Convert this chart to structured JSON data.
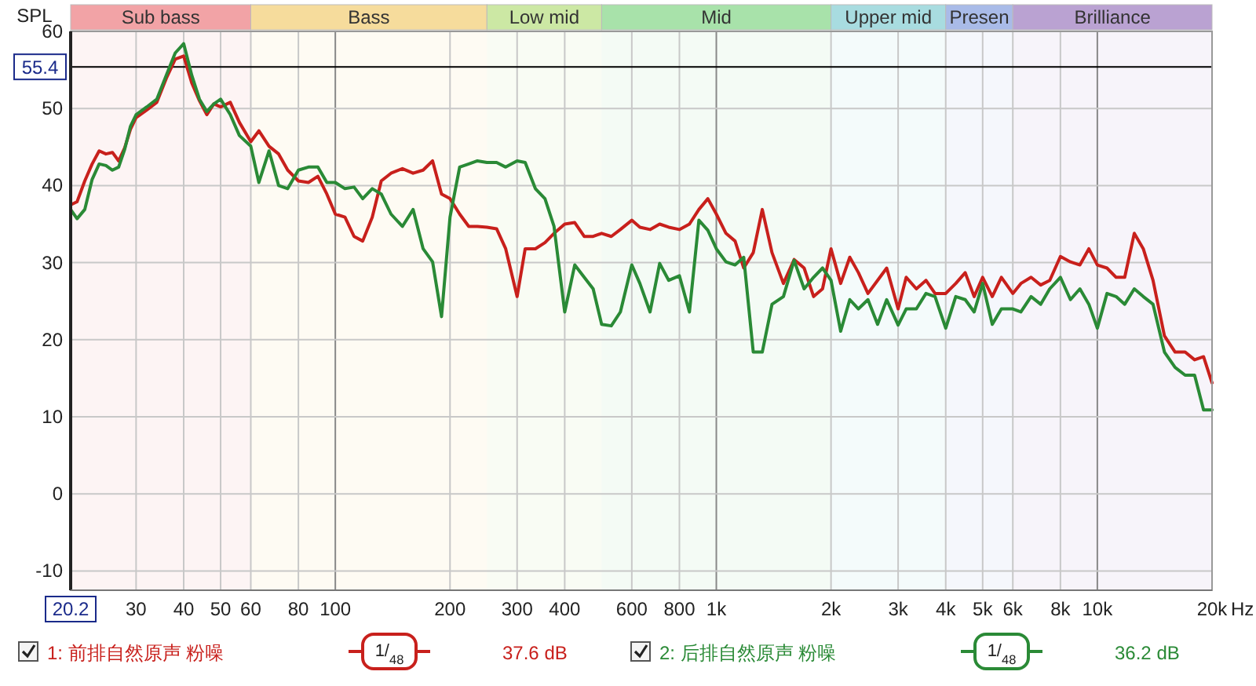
{
  "chart_data": {
    "type": "line",
    "ylabel": "SPL",
    "log": "x",
    "grid": true,
    "legend": "bottom",
    "marker": "none",
    "line_style": "solid",
    "xlim": [
      20.2,
      20000
    ],
    "ylim": [
      -12.5,
      60
    ],
    "xticks": [
      {
        "value": 20.2,
        "label": "20.2"
      },
      30,
      40,
      50,
      60,
      80,
      100,
      200,
      300,
      400,
      600,
      800,
      {
        "value": 1000,
        "label": "1k"
      },
      {
        "value": 2000,
        "label": "2k"
      },
      {
        "value": 3000,
        "label": "3k"
      },
      {
        "value": 4000,
        "label": "4k"
      },
      {
        "value": 5000,
        "label": "5k"
      },
      {
        "value": 6000,
        "label": "6k"
      },
      {
        "value": 8000,
        "label": "8k"
      },
      {
        "value": 10000,
        "label": "10k"
      },
      {
        "value": 20000,
        "label": "20k"
      }
    ],
    "xlabel": "Hz",
    "yticks": [
      -10,
      0,
      10,
      20,
      30,
      40,
      50,
      60
    ],
    "x": [
      20.2,
      21,
      22,
      23,
      24,
      25,
      26,
      27,
      28,
      29,
      30,
      32,
      34,
      36,
      38,
      40,
      42,
      44,
      46,
      48,
      50,
      53,
      56,
      60,
      63,
      67,
      71,
      75,
      80,
      85,
      90,
      95,
      100,
      106,
      112,
      118,
      125,
      132,
      140,
      150,
      160,
      170,
      180,
      190,
      200,
      212,
      224,
      236,
      250,
      265,
      280,
      300,
      315,
      335,
      355,
      375,
      400,
      425,
      450,
      475,
      500,
      530,
      560,
      600,
      630,
      670,
      710,
      750,
      800,
      850,
      900,
      950,
      1000,
      1060,
      1120,
      1180,
      1250,
      1320,
      1400,
      1500,
      1600,
      1700,
      1800,
      1900,
      2000,
      2120,
      2240,
      2360,
      2500,
      2650,
      2800,
      3000,
      3150,
      3350,
      3550,
      3750,
      4000,
      4250,
      4500,
      4750,
      5000,
      5300,
      5600,
      6000,
      6300,
      6700,
      7100,
      7500,
      8000,
      8500,
      9000,
      9500,
      10000,
      10600,
      11200,
      11800,
      12500,
      13200,
      14000,
      15000,
      16000,
      17000,
      18000,
      19000,
      20000
    ],
    "series": [
      {
        "name": "1: 前排自然原声 粉噪",
        "color": "#c8201c",
        "values": [
          37.5,
          37.9,
          40.6,
          42.8,
          44.5,
          44.1,
          44.3,
          43.2,
          44.9,
          47.3,
          48.8,
          49.8,
          50.8,
          53.9,
          56.4,
          56.8,
          53.3,
          51.0,
          49.2,
          50.6,
          50.2,
          50.8,
          48.2,
          45.7,
          47.1,
          45.1,
          44.1,
          42.0,
          40.6,
          40.4,
          41.2,
          38.9,
          36.3,
          35.9,
          33.4,
          32.8,
          35.9,
          40.6,
          41.6,
          42.2,
          41.6,
          42.0,
          43.2,
          38.9,
          38.3,
          36.3,
          34.7,
          34.7,
          34.6,
          34.4,
          31.8,
          25.6,
          31.8,
          31.8,
          32.6,
          33.8,
          35.0,
          35.2,
          33.4,
          33.4,
          33.8,
          33.4,
          34.3,
          35.5,
          34.6,
          34.3,
          35.0,
          34.6,
          34.3,
          35.0,
          36.9,
          38.3,
          36.3,
          33.8,
          32.8,
          29.3,
          31.3,
          36.9,
          31.3,
          27.3,
          30.4,
          29.3,
          25.6,
          26.6,
          31.8,
          27.3,
          30.7,
          28.7,
          26.0,
          27.7,
          29.3,
          24.0,
          28.1,
          26.6,
          27.7,
          26.0,
          26.0,
          27.3,
          28.7,
          25.6,
          28.1,
          25.6,
          28.1,
          26.0,
          27.3,
          28.1,
          27.1,
          27.7,
          30.8,
          30.1,
          29.7,
          31.8,
          29.7,
          29.3,
          28.1,
          28.1,
          33.8,
          31.8,
          27.7,
          20.5,
          18.4,
          18.4,
          17.4,
          17.8,
          14.4
        ]
      },
      {
        "name": "2: 后排自然原声 粉噪",
        "color": "#2a8a36",
        "values": [
          36.9,
          35.7,
          36.9,
          40.8,
          42.8,
          42.6,
          42.0,
          42.4,
          44.7,
          47.7,
          49.2,
          50.2,
          51.2,
          54.3,
          57.2,
          58.4,
          54.3,
          51.2,
          49.6,
          50.6,
          51.2,
          49.2,
          46.5,
          45.1,
          40.4,
          44.5,
          40.0,
          39.6,
          42.0,
          42.4,
          42.4,
          40.4,
          40.4,
          39.6,
          39.8,
          38.3,
          39.6,
          38.9,
          36.3,
          34.7,
          36.9,
          31.8,
          30.1,
          23.0,
          35.9,
          42.4,
          42.8,
          43.2,
          43.0,
          43.0,
          42.4,
          43.2,
          43.0,
          39.6,
          38.3,
          34.7,
          23.6,
          29.7,
          28.1,
          26.6,
          22.0,
          21.8,
          23.6,
          29.7,
          27.3,
          23.6,
          29.9,
          27.7,
          28.3,
          23.6,
          35.5,
          34.2,
          31.8,
          30.1,
          29.7,
          30.7,
          18.4,
          18.4,
          24.6,
          25.6,
          30.3,
          26.6,
          28.1,
          29.3,
          27.7,
          21.1,
          25.2,
          24.0,
          25.2,
          22.0,
          25.2,
          21.9,
          24.0,
          24.0,
          26.0,
          25.6,
          21.5,
          25.6,
          25.2,
          23.6,
          27.3,
          22.0,
          24.0,
          24.0,
          23.6,
          25.6,
          24.6,
          26.6,
          28.1,
          25.2,
          26.6,
          24.6,
          21.5,
          26.0,
          25.6,
          24.6,
          26.6,
          25.6,
          24.6,
          18.4,
          16.4,
          15.4,
          15.4,
          10.9,
          10.9
        ]
      }
    ],
    "ref_lines": [
      {
        "axis": "y",
        "value": 55.4,
        "label": "55.4",
        "color": "#000000"
      }
    ],
    "bands": [
      {
        "axis": "x",
        "from": 20.2,
        "to": 60,
        "label": "Sub bass",
        "color": "#f2a3a6"
      },
      {
        "axis": "x",
        "from": 60,
        "to": 250,
        "label": "Bass",
        "color": "#f6dc9c"
      },
      {
        "axis": "x",
        "from": 250,
        "to": 500,
        "label": "Low mid",
        "color": "#cce8a4"
      },
      {
        "axis": "x",
        "from": 500,
        "to": 2000,
        "label": "Mid",
        "color": "#a8e2aa"
      },
      {
        "axis": "x",
        "from": 2000,
        "to": 4000,
        "label": "Upper mid",
        "color": "#a8dce0"
      },
      {
        "axis": "x",
        "from": 4000,
        "to": 6000,
        "label": "Presen",
        "color": "#a9bbe8"
      },
      {
        "axis": "x",
        "from": 6000,
        "to": 20000,
        "label": "Brilliance",
        "color": "#baa2d2"
      }
    ],
    "annotations": [
      "1/$_{48}$",
      "37.6 dB",
      "1/$_{48}$",
      "36.2 dB"
    ]
  }
}
